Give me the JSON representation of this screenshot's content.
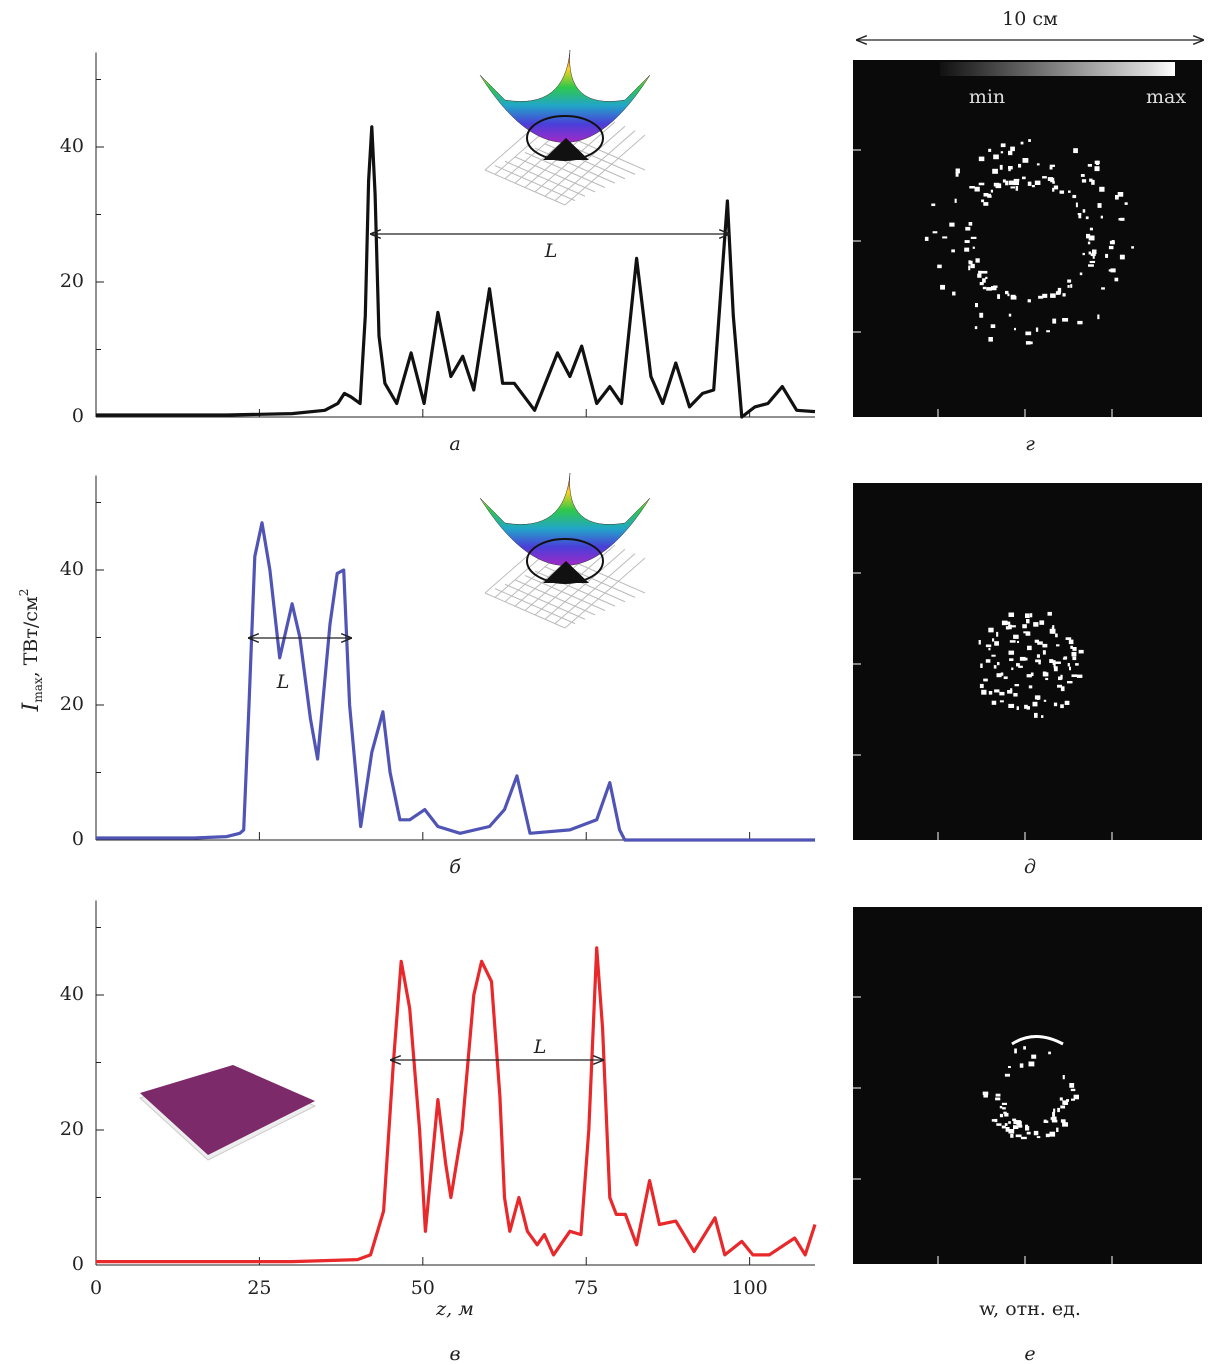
{
  "chart_data": [
    {
      "type": "line",
      "panel_label": "а",
      "annotation": "L",
      "x": [
        0,
        10,
        20,
        30,
        35,
        37,
        38,
        39,
        40.4,
        41.2,
        41.7,
        42.2,
        42.7,
        43.3,
        44.2,
        46,
        48.2,
        50.2,
        52.3,
        54.3,
        56.1,
        57.8,
        60.2,
        62.2,
        64,
        67.1,
        70.6,
        72.5,
        74.3,
        76.6,
        78.6,
        80.4,
        82.7,
        84.9,
        86.7,
        88.7,
        90.8,
        92.8,
        94.5,
        95.7,
        96.6,
        97.5,
        98.8,
        100.8,
        102.8,
        105,
        107.2,
        110
      ],
      "series": [
        {
          "color": "#111111",
          "values": [
            0.3,
            0.3,
            0.3,
            0.5,
            1,
            2,
            3.5,
            3,
            2,
            15,
            35,
            43,
            33,
            12,
            5,
            2,
            9.5,
            2,
            15.5,
            6,
            9,
            4,
            19,
            5,
            5,
            1,
            9.5,
            6,
            10.5,
            2,
            4.5,
            2,
            23.5,
            6,
            2,
            8,
            1.5,
            3.5,
            4,
            20,
            32,
            15,
            0,
            1.5,
            2,
            4.5,
            1,
            0.8
          ]
        }
      ],
      "xlim": [
        0,
        110
      ],
      "xticks": [
        0,
        25,
        50,
        75,
        100
      ],
      "show_xtick_labels": false,
      "ylim": [
        0,
        54
      ],
      "yticks": [
        0,
        20,
        40
      ],
      "yminor": [
        10,
        30,
        50
      ]
    },
    {
      "type": "line",
      "panel_label": "б",
      "annotation": "L",
      "ylabel": {
        "symbol": "I",
        "subscript": "max",
        "unit": ", ТВт/см",
        "power": "2"
      },
      "x": [
        0,
        15,
        20,
        22,
        22.6,
        23.4,
        24.3,
        25.4,
        26.6,
        28.1,
        30,
        31.2,
        32.8,
        33.9,
        35.8,
        36.9,
        37.9,
        38.8,
        40.5,
        42.2,
        43.9,
        45,
        46.5,
        48,
        50.3,
        52.3,
        55.7,
        60.2,
        62.5,
        64.4,
        66.4,
        72.5,
        76.6,
        78.6,
        80.1,
        80.9,
        90,
        110
      ],
      "series": [
        {
          "color": "#5055b5",
          "values": [
            0.3,
            0.3,
            0.5,
            1,
            1.5,
            20,
            42,
            47,
            40,
            27,
            35,
            30,
            18,
            12,
            32,
            39.5,
            40,
            20,
            2,
            13,
            19,
            10,
            3,
            3,
            4.5,
            2,
            1,
            2,
            4.5,
            9.5,
            1,
            1.5,
            3,
            8.5,
            1.5,
            0,
            0,
            0
          ]
        }
      ],
      "xlim": [
        0,
        110
      ],
      "xticks": [
        0,
        25,
        50,
        75,
        100
      ],
      "show_xtick_labels": false,
      "ylim": [
        0,
        54
      ],
      "yticks": [
        0,
        20,
        40
      ],
      "yminor": [
        10,
        30,
        50
      ]
    },
    {
      "type": "line",
      "panel_label": "в",
      "annotation": "L",
      "xlabel": "z, м",
      "x": [
        0,
        30,
        40,
        42,
        44,
        45.5,
        46.7,
        48,
        49.5,
        50.4,
        52.3,
        53.5,
        54.3,
        56,
        57.8,
        59,
        60.5,
        61.8,
        62.5,
        63.3,
        64.7,
        66,
        67.5,
        68.6,
        70,
        72.5,
        74.2,
        75.4,
        76.6,
        77.5,
        78.6,
        79.6,
        81,
        82.7,
        84.7,
        86.2,
        88.7,
        91.5,
        94.7,
        96.2,
        98.8,
        100.5,
        103,
        106.9,
        108.5,
        110
      ],
      "series": [
        {
          "color": "#e8282a",
          "values": [
            0.5,
            0.5,
            0.8,
            1.5,
            8,
            30,
            45,
            38,
            20,
            5,
            24.5,
            15,
            10,
            20,
            40,
            45,
            42,
            25,
            10,
            5,
            10,
            5,
            3,
            4.5,
            1.5,
            5,
            4.5,
            20,
            47,
            35,
            10,
            7.5,
            7.5,
            3,
            12.5,
            6,
            6.5,
            2,
            7,
            1.5,
            3.5,
            1.5,
            1.5,
            4,
            1.5,
            6
          ]
        }
      ],
      "xlim": [
        0,
        110
      ],
      "xticks": [
        0,
        25,
        50,
        75,
        100
      ],
      "show_xtick_labels": true,
      "ylim": [
        0,
        54
      ],
      "yticks": [
        0,
        20,
        40
      ],
      "yminor": [
        10,
        30,
        50
      ]
    }
  ],
  "images": {
    "scale_label": "10 см",
    "colorbar": {
      "min": "min",
      "max": "max"
    },
    "xlabel": "w, отн. ед.",
    "panels": [
      "г",
      "д",
      "е"
    ]
  }
}
